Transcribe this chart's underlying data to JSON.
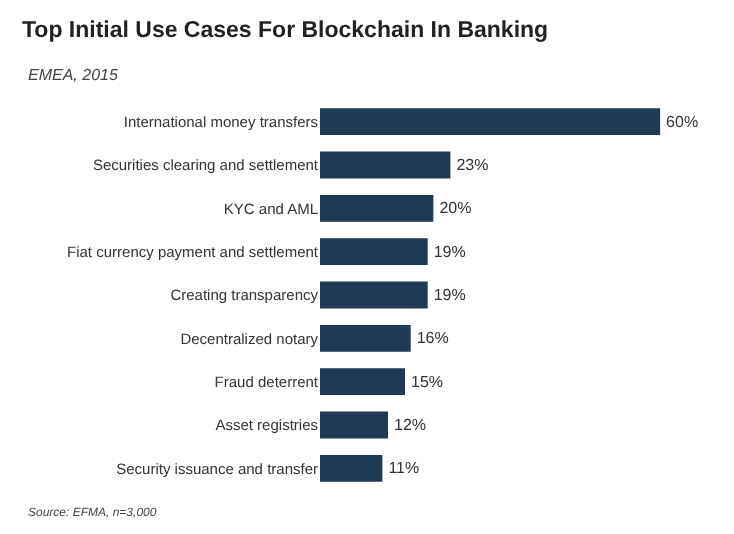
{
  "chart_data": {
    "type": "bar",
    "orientation": "horizontal",
    "title": "Top Initial Use Cases For Blockchain In Banking",
    "subtitle": "EMEA, 2015",
    "categories": [
      "International money transfers",
      "Securities clearing and settlement",
      "KYC and AML",
      "Fiat currency payment and settlement",
      "Creating transparency",
      "Decentralized notary",
      "Fraud deterrent",
      "Asset registries",
      "Security issuance and transfer"
    ],
    "values": [
      60,
      23,
      20,
      19,
      19,
      16,
      15,
      12,
      11
    ],
    "value_labels": [
      "60%",
      "23%",
      "20%",
      "19%",
      "19%",
      "16%",
      "15%",
      "12%",
      "11%"
    ],
    "color": "#1f3a52",
    "annotations": [
      "Source: EFMA, n=3,000"
    ]
  }
}
